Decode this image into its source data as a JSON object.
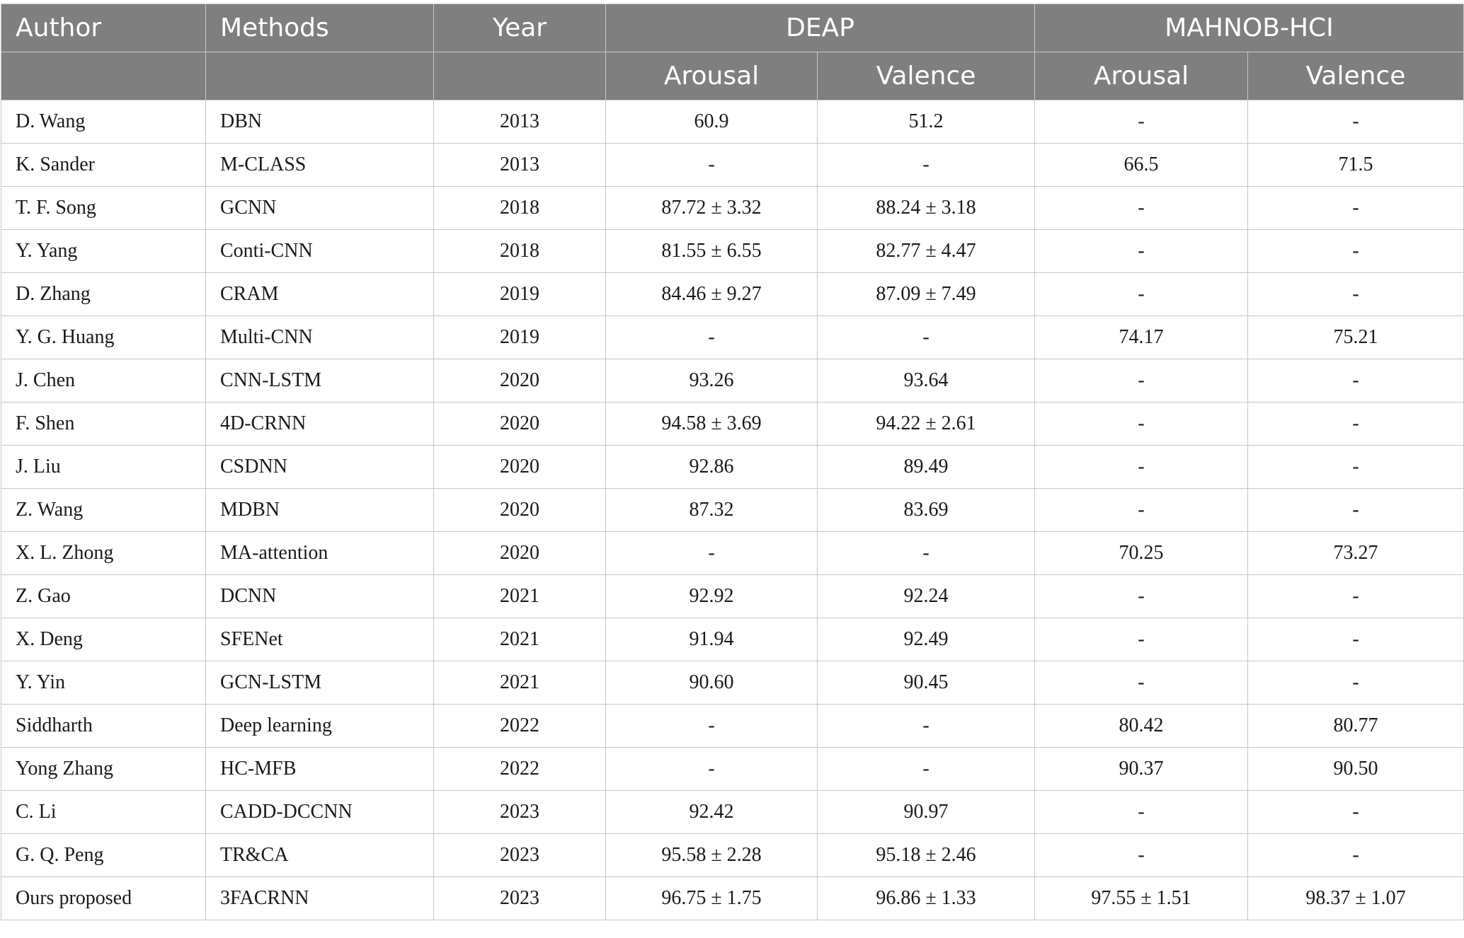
{
  "header": {
    "author": "Author",
    "methods": "Methods",
    "year": "Year",
    "deap": "DEAP",
    "mahnob": "MAHNOB-HCI",
    "deap_arousal": "Arousal",
    "deap_valence": "Valence",
    "mahnob_arousal": "Arousal",
    "mahnob_valence": "Valence"
  },
  "rows": [
    {
      "author": "D. Wang",
      "method": "DBN",
      "year": "2013",
      "deap_arousal": "60.9",
      "deap_valence": "51.2",
      "mahnob_arousal": "-",
      "mahnob_valence": "-"
    },
    {
      "author": "K. Sander",
      "method": "M-CLASS",
      "year": "2013",
      "deap_arousal": "-",
      "deap_valence": "-",
      "mahnob_arousal": "66.5",
      "mahnob_valence": "71.5"
    },
    {
      "author": "T. F. Song",
      "method": "GCNN",
      "year": "2018",
      "deap_arousal": "87.72 ± 3.32",
      "deap_valence": "88.24 ± 3.18",
      "mahnob_arousal": "-",
      "mahnob_valence": "-"
    },
    {
      "author": "Y. Yang",
      "method": "Conti-CNN",
      "year": "2018",
      "deap_arousal": "81.55 ± 6.55",
      "deap_valence": "82.77 ± 4.47",
      "mahnob_arousal": "-",
      "mahnob_valence": "-"
    },
    {
      "author": "D. Zhang",
      "method": "CRAM",
      "year": "2019",
      "deap_arousal": "84.46 ± 9.27",
      "deap_valence": "87.09 ± 7.49",
      "mahnob_arousal": "-",
      "mahnob_valence": "-"
    },
    {
      "author": "Y. G. Huang",
      "method": "Multi-CNN",
      "year": "2019",
      "deap_arousal": "-",
      "deap_valence": "-",
      "mahnob_arousal": "74.17",
      "mahnob_valence": "75.21"
    },
    {
      "author": "J. Chen",
      "method": "CNN-LSTM",
      "year": "2020",
      "deap_arousal": "93.26",
      "deap_valence": "93.64",
      "mahnob_arousal": "-",
      "mahnob_valence": "-"
    },
    {
      "author": "F. Shen",
      "method": "4D-CRNN",
      "year": "2020",
      "deap_arousal": "94.58 ± 3.69",
      "deap_valence": "94.22 ± 2.61",
      "mahnob_arousal": "-",
      "mahnob_valence": "-"
    },
    {
      "author": "J. Liu",
      "method": "CSDNN",
      "year": "2020",
      "deap_arousal": "92.86",
      "deap_valence": "89.49",
      "mahnob_arousal": "-",
      "mahnob_valence": "-"
    },
    {
      "author": "Z. Wang",
      "method": "MDBN",
      "year": "2020",
      "deap_arousal": "87.32",
      "deap_valence": "83.69",
      "mahnob_arousal": "-",
      "mahnob_valence": "-"
    },
    {
      "author": "X. L. Zhong",
      "method": "MA-attention",
      "year": "2020",
      "deap_arousal": "-",
      "deap_valence": "-",
      "mahnob_arousal": "70.25",
      "mahnob_valence": "73.27"
    },
    {
      "author": "Z. Gao",
      "method": "DCNN",
      "year": "2021",
      "deap_arousal": "92.92",
      "deap_valence": "92.24",
      "mahnob_arousal": "-",
      "mahnob_valence": "-"
    },
    {
      "author": "X. Deng",
      "method": "SFENet",
      "year": "2021",
      "deap_arousal": "91.94",
      "deap_valence": "92.49",
      "mahnob_arousal": "-",
      "mahnob_valence": "-"
    },
    {
      "author": "Y. Yin",
      "method": "GCN-LSTM",
      "year": "2021",
      "deap_arousal": "90.60",
      "deap_valence": "90.45",
      "mahnob_arousal": "-",
      "mahnob_valence": "-"
    },
    {
      "author": "Siddharth",
      "method": "Deep learning",
      "year": "2022",
      "deap_arousal": "-",
      "deap_valence": "-",
      "mahnob_arousal": "80.42",
      "mahnob_valence": "80.77"
    },
    {
      "author": "Yong Zhang",
      "method": "HC-MFB",
      "year": "2022",
      "deap_arousal": "-",
      "deap_valence": "-",
      "mahnob_arousal": "90.37",
      "mahnob_valence": "90.50"
    },
    {
      "author": "C. Li",
      "method": "CADD-DCCNN",
      "year": "2023",
      "deap_arousal": "92.42",
      "deap_valence": "90.97",
      "mahnob_arousal": "-",
      "mahnob_valence": "-"
    },
    {
      "author": "G. Q. Peng",
      "method": "TR&CA",
      "year": "2023",
      "deap_arousal": "95.58 ± 2.28",
      "deap_valence": "95.18 ± 2.46",
      "mahnob_arousal": "-",
      "mahnob_valence": "-"
    },
    {
      "author": "Ours proposed",
      "method": "3FACRNN",
      "year": "2023",
      "deap_arousal": "96.75 ± 1.75",
      "deap_valence": "96.86 ± 1.33",
      "mahnob_arousal": "97.55 ± 1.51",
      "mahnob_valence": "98.37 ± 1.07"
    }
  ]
}
